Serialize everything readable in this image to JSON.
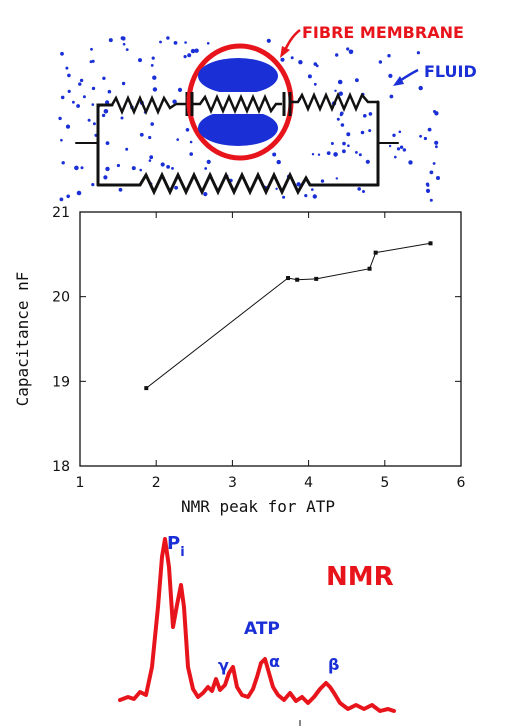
{
  "diagram": {
    "membrane_label": "FIBRE MEMBRANE",
    "fluid_label": "FLUID",
    "colors": {
      "membrane": "#e8141c",
      "fluid": "#1a2fd6",
      "wire": "#111111"
    }
  },
  "chart_data": {
    "type": "line",
    "title": "",
    "xlabel": "NMR peak for ATP",
    "ylabel": "Capacitance nF",
    "xlim": [
      1,
      6
    ],
    "ylim": [
      18,
      21
    ],
    "xticks": [
      "1",
      "2",
      "3",
      "4",
      "5",
      "6"
    ],
    "yticks": [
      "18",
      "19",
      "20",
      "21"
    ],
    "grid": false,
    "series": [
      {
        "x": [
          1.87,
          3.73,
          3.85,
          4.1,
          4.8,
          4.88,
          5.6
        ],
        "y": [
          18.92,
          20.22,
          20.2,
          20.21,
          20.33,
          20.52,
          20.63
        ]
      }
    ]
  },
  "spectrum": {
    "title": "NMR",
    "peak_pi_main": "P",
    "peak_pi_sub": "i",
    "atp_label": "ATP",
    "gamma": "γ",
    "alpha": "α",
    "beta": "β",
    "colors": {
      "trace": "#e8141c",
      "labels": "#1a2fd6"
    }
  }
}
